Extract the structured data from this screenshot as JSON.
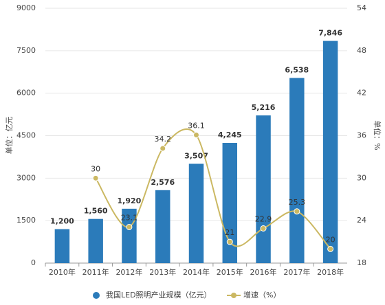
{
  "chart_data": {
    "type": "bar",
    "categories": [
      "2010年",
      "2011年",
      "2012年",
      "2013年",
      "2014年",
      "2015年",
      "2016年",
      "2017年",
      "2018年"
    ],
    "ylabel": "单位：亿元",
    "y2label": "单位：%",
    "ylim": [
      0,
      9000
    ],
    "yticks": [
      0,
      1500,
      3000,
      4500,
      6000,
      7500,
      9000
    ],
    "y2lim": [
      18,
      54
    ],
    "y2ticks": [
      18,
      24,
      30,
      36,
      42,
      48,
      54
    ],
    "grid": true,
    "series": [
      {
        "name": "我国LED照明产业规模（亿元）",
        "color": "#2b7bba",
        "type": "bar",
        "values": [
          1200,
          1560,
          1920,
          2576,
          3507,
          4245,
          5216,
          6538,
          7846
        ],
        "value_labels": [
          "1,200",
          "1,560",
          "1,920",
          "2,576",
          "3,507",
          "4,245",
          "5,216",
          "6,538",
          "7,846"
        ]
      },
      {
        "name": "增速（%）",
        "color": "#cbb862",
        "type": "line",
        "axis": "y2",
        "values": [
          null,
          30,
          23.1,
          34.2,
          36.1,
          21,
          22.9,
          25.3,
          20
        ]
      }
    ]
  }
}
